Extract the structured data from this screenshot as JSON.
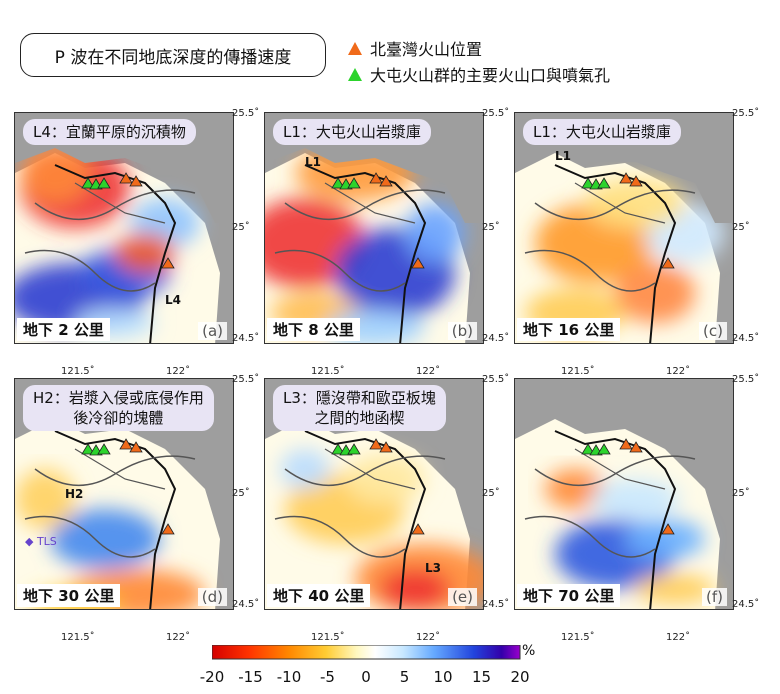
{
  "title": "P 波在不同地底深度的傳播速度",
  "legend": {
    "orange_label": "北臺灣火山位置",
    "green_label": "大屯火山群的主要火山口與噴氣孔",
    "orange_color": "#f06a1a",
    "green_color": "#2cd32c"
  },
  "axes": {
    "lat_ticks": [
      "25.5˚",
      "25˚",
      "24.5˚"
    ],
    "lon_ticks": [
      "121.5˚",
      "122˚"
    ]
  },
  "panels": [
    {
      "id": "a",
      "letter": "(a)",
      "depth": "地下 2 公里",
      "note": "L4：宜蘭平原的沉積物",
      "marker": "L4"
    },
    {
      "id": "b",
      "letter": "(b)",
      "depth": "地下 8 公里",
      "note": "L1：大屯火山岩漿庫",
      "marker": "L1"
    },
    {
      "id": "c",
      "letter": "(c)",
      "depth": "地下 16 公里",
      "note": "L1：大屯火山岩漿庫",
      "marker": "L1"
    },
    {
      "id": "d",
      "letter": "(d)",
      "depth": "地下 30 公里",
      "note": "H2：岩漿入侵或底侵作用 後冷卻的塊體",
      "marker": "H2",
      "extra": "TLS"
    },
    {
      "id": "e",
      "letter": "(e)",
      "depth": "地下 40 公里",
      "note": "L3：隱沒帶和歐亞板塊 之間的地函楔",
      "marker": "L3"
    },
    {
      "id": "f",
      "letter": "(f)",
      "depth": "地下 70 公里",
      "note": "",
      "marker": ""
    }
  ],
  "chart_data": {
    "type": "heatmap",
    "title": "P 波在不同地底深度的傳播速度",
    "colorbar": {
      "unit": "%",
      "ticks": [
        -20,
        -15,
        -10,
        -5,
        0,
        5,
        10,
        15,
        20
      ],
      "range": [
        -20,
        20
      ],
      "colors": [
        "#d40000",
        "#ff3300",
        "#ff8800",
        "#ffcc33",
        "#fff8c0",
        "#ffffff",
        "#c8e8ff",
        "#66aaff",
        "#2244dd",
        "#3300aa",
        "#9900cc"
      ]
    },
    "depths_km": [
      2,
      8,
      16,
      30,
      40,
      70
    ]
  }
}
